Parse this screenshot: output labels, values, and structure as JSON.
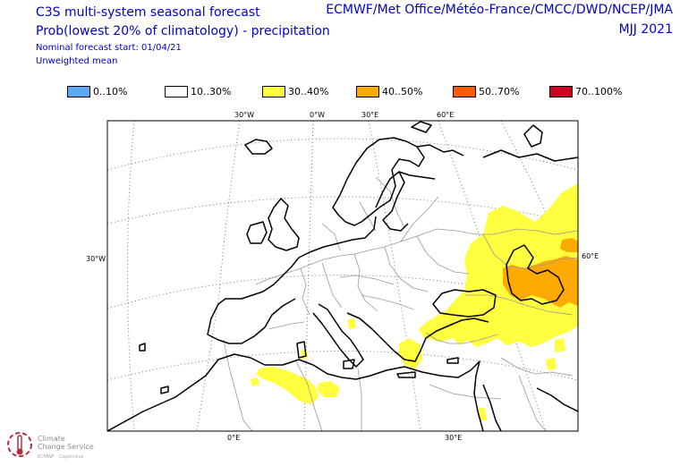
{
  "header": {
    "title": "C3S multi-system seasonal forecast",
    "subtitle": "Prob(lowest 20% of climatology) - precipitation",
    "forecast_start": "Nominal forecast start: 01/04/21",
    "mean_type": "Unweighted mean",
    "centres": "ECMWF/Met Office/Météo-France/CMCC/DWD/NCEP/JMA",
    "period": "MJJ 2021"
  },
  "legend": [
    {
      "label": "0..10%",
      "color": "#5aa9f2"
    },
    {
      "label": "10..30%",
      "color": "#ffffff"
    },
    {
      "label": "30..40%",
      "color": "#ffff40"
    },
    {
      "label": "40..50%",
      "color": "#ffaa00"
    },
    {
      "label": "50..70%",
      "color": "#ff5a00"
    },
    {
      "label": "70..100%",
      "color": "#cc0022"
    }
  ],
  "graticule_labels": {
    "top": [
      "30°W",
      "0°W",
      "30°E",
      "60°E"
    ],
    "left": "30°W",
    "right": "60°E",
    "bottom": [
      "0°E",
      "30°E"
    ]
  },
  "logo": {
    "line1": "Climate",
    "line2": "Change Service",
    "small": "ECMWF · Copernicus"
  },
  "colors": {
    "header_text": "#0000cc",
    "coastline": "#000000",
    "borders": "#999999",
    "graticule": "#777777",
    "yellow": "#ffff40",
    "orange": "#ffaa00"
  }
}
